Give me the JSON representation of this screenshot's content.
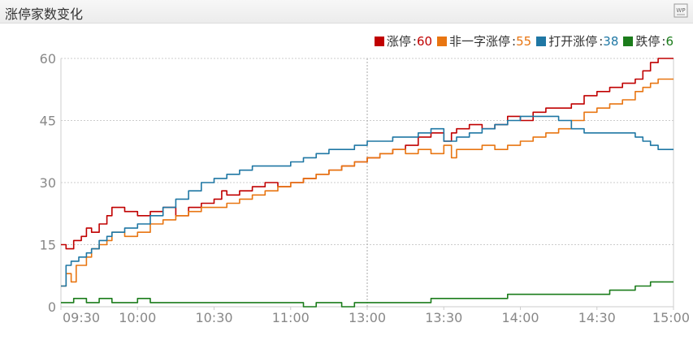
{
  "header": {
    "title": "涨停家数变化",
    "icon": "wp-icon"
  },
  "chart_data": {
    "type": "line",
    "x_ticks": [
      "09:30",
      "10:00",
      "10:30",
      "11:00",
      "13:00",
      "13:30",
      "14:00",
      "14:30",
      "15:00"
    ],
    "y_ticks": [
      0,
      15,
      30,
      45,
      60
    ],
    "ylim": [
      0,
      60
    ],
    "grid": true,
    "legend_position": "top-right",
    "series": [
      {
        "name": "涨停",
        "latest": "60",
        "color": "#c00000",
        "points": [
          [
            0,
            15
          ],
          [
            2,
            14
          ],
          [
            5,
            16
          ],
          [
            8,
            17
          ],
          [
            10,
            19
          ],
          [
            12,
            18
          ],
          [
            15,
            20
          ],
          [
            18,
            22
          ],
          [
            20,
            24
          ],
          [
            25,
            23
          ],
          [
            30,
            22
          ],
          [
            35,
            23
          ],
          [
            40,
            24
          ],
          [
            45,
            22
          ],
          [
            50,
            24
          ],
          [
            55,
            25
          ],
          [
            60,
            26
          ],
          [
            63,
            28
          ],
          [
            65,
            27
          ],
          [
            70,
            28
          ],
          [
            75,
            29
          ],
          [
            80,
            30
          ],
          [
            85,
            29
          ],
          [
            90,
            30
          ],
          [
            95,
            31
          ],
          [
            100,
            32
          ],
          [
            105,
            33
          ],
          [
            110,
            34
          ],
          [
            115,
            35
          ],
          [
            120,
            36
          ],
          [
            125,
            37
          ],
          [
            130,
            38
          ],
          [
            135,
            39
          ],
          [
            140,
            41
          ],
          [
            145,
            42
          ],
          [
            150,
            40
          ],
          [
            153,
            42
          ],
          [
            155,
            43
          ],
          [
            160,
            44
          ],
          [
            165,
            43
          ],
          [
            170,
            44
          ],
          [
            175,
            46
          ],
          [
            180,
            45
          ],
          [
            185,
            47
          ],
          [
            190,
            48
          ],
          [
            195,
            48
          ],
          [
            200,
            49
          ],
          [
            205,
            51
          ],
          [
            210,
            52
          ],
          [
            215,
            53
          ],
          [
            220,
            54
          ],
          [
            225,
            55
          ],
          [
            228,
            57
          ],
          [
            231,
            59
          ],
          [
            234,
            60
          ],
          [
            237,
            60
          ],
          [
            240,
            60
          ]
        ]
      },
      {
        "name": "非一字涨停",
        "latest": "55",
        "color": "#e87511",
        "points": [
          [
            0,
            5
          ],
          [
            2,
            8
          ],
          [
            4,
            6
          ],
          [
            6,
            10
          ],
          [
            10,
            12
          ],
          [
            12,
            14
          ],
          [
            15,
            15
          ],
          [
            18,
            16
          ],
          [
            20,
            18
          ],
          [
            25,
            17
          ],
          [
            30,
            18
          ],
          [
            35,
            20
          ],
          [
            40,
            21
          ],
          [
            45,
            22
          ],
          [
            50,
            23
          ],
          [
            55,
            24
          ],
          [
            60,
            24
          ],
          [
            65,
            25
          ],
          [
            70,
            26
          ],
          [
            75,
            27
          ],
          [
            80,
            28
          ],
          [
            85,
            29
          ],
          [
            90,
            30
          ],
          [
            95,
            31
          ],
          [
            100,
            32
          ],
          [
            105,
            33
          ],
          [
            110,
            34
          ],
          [
            115,
            35
          ],
          [
            120,
            36
          ],
          [
            125,
            37
          ],
          [
            130,
            38
          ],
          [
            135,
            37
          ],
          [
            140,
            38
          ],
          [
            145,
            37
          ],
          [
            150,
            39
          ],
          [
            153,
            36
          ],
          [
            155,
            38
          ],
          [
            160,
            38
          ],
          [
            165,
            39
          ],
          [
            170,
            38
          ],
          [
            175,
            39
          ],
          [
            180,
            40
          ],
          [
            185,
            41
          ],
          [
            190,
            42
          ],
          [
            195,
            43
          ],
          [
            200,
            45
          ],
          [
            205,
            47
          ],
          [
            210,
            48
          ],
          [
            215,
            49
          ],
          [
            220,
            50
          ],
          [
            225,
            52
          ],
          [
            228,
            53
          ],
          [
            231,
            54
          ],
          [
            234,
            55
          ],
          [
            237,
            55
          ],
          [
            240,
            55
          ]
        ]
      },
      {
        "name": "打开涨停",
        "latest": "38",
        "color": "#1f77a4",
        "points": [
          [
            0,
            5
          ],
          [
            2,
            10
          ],
          [
            4,
            11
          ],
          [
            7,
            12
          ],
          [
            10,
            13
          ],
          [
            12,
            14
          ],
          [
            15,
            16
          ],
          [
            18,
            17
          ],
          [
            20,
            18
          ],
          [
            25,
            19
          ],
          [
            30,
            20
          ],
          [
            35,
            22
          ],
          [
            40,
            24
          ],
          [
            45,
            26
          ],
          [
            50,
            28
          ],
          [
            55,
            30
          ],
          [
            60,
            31
          ],
          [
            65,
            32
          ],
          [
            70,
            33
          ],
          [
            75,
            34
          ],
          [
            80,
            34
          ],
          [
            85,
            34
          ],
          [
            90,
            35
          ],
          [
            95,
            36
          ],
          [
            100,
            37
          ],
          [
            105,
            38
          ],
          [
            110,
            38
          ],
          [
            115,
            39
          ],
          [
            120,
            40
          ],
          [
            125,
            40
          ],
          [
            130,
            41
          ],
          [
            135,
            41
          ],
          [
            140,
            42
          ],
          [
            145,
            43
          ],
          [
            150,
            40
          ],
          [
            153,
            40
          ],
          [
            155,
            41
          ],
          [
            160,
            42
          ],
          [
            165,
            43
          ],
          [
            170,
            44
          ],
          [
            175,
            45
          ],
          [
            180,
            46
          ],
          [
            185,
            46
          ],
          [
            190,
            46
          ],
          [
            195,
            45
          ],
          [
            200,
            43
          ],
          [
            205,
            42
          ],
          [
            210,
            42
          ],
          [
            215,
            42
          ],
          [
            220,
            42
          ],
          [
            225,
            41
          ],
          [
            228,
            40
          ],
          [
            231,
            39
          ],
          [
            234,
            38
          ],
          [
            237,
            38
          ],
          [
            240,
            38
          ]
        ]
      },
      {
        "name": "跌停",
        "latest": "6",
        "color": "#1b7c1b",
        "points": [
          [
            0,
            1
          ],
          [
            5,
            2
          ],
          [
            10,
            1
          ],
          [
            15,
            2
          ],
          [
            20,
            1
          ],
          [
            25,
            1
          ],
          [
            30,
            2
          ],
          [
            35,
            1
          ],
          [
            40,
            1
          ],
          [
            45,
            1
          ],
          [
            50,
            1
          ],
          [
            55,
            1
          ],
          [
            60,
            1
          ],
          [
            65,
            1
          ],
          [
            70,
            1
          ],
          [
            75,
            1
          ],
          [
            80,
            1
          ],
          [
            85,
            1
          ],
          [
            90,
            1
          ],
          [
            95,
            0
          ],
          [
            100,
            1
          ],
          [
            105,
            1
          ],
          [
            110,
            0
          ],
          [
            115,
            1
          ],
          [
            120,
            1
          ],
          [
            125,
            1
          ],
          [
            130,
            1
          ],
          [
            135,
            1
          ],
          [
            140,
            1
          ],
          [
            145,
            2
          ],
          [
            150,
            2
          ],
          [
            155,
            2
          ],
          [
            160,
            2
          ],
          [
            165,
            2
          ],
          [
            170,
            2
          ],
          [
            175,
            3
          ],
          [
            180,
            3
          ],
          [
            185,
            3
          ],
          [
            190,
            3
          ],
          [
            195,
            3
          ],
          [
            200,
            3
          ],
          [
            205,
            3
          ],
          [
            210,
            3
          ],
          [
            215,
            4
          ],
          [
            220,
            4
          ],
          [
            225,
            5
          ],
          [
            228,
            5
          ],
          [
            231,
            6
          ],
          [
            234,
            6
          ],
          [
            237,
            6
          ],
          [
            240,
            6
          ]
        ]
      }
    ]
  }
}
